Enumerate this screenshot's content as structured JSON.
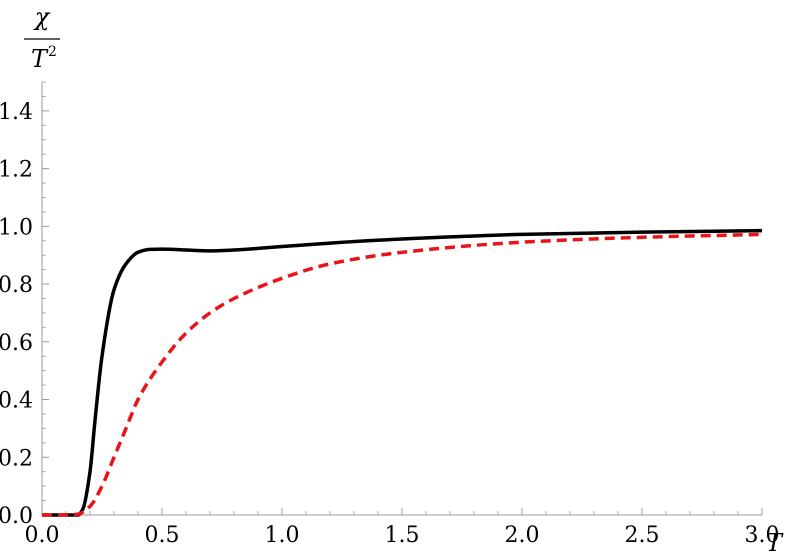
{
  "chart_data": {
    "type": "line",
    "xlabel": "T",
    "ylabel": {
      "numerator": "χ",
      "denominator_base": "T",
      "denominator_exponent": "2"
    },
    "xlim": [
      0,
      3.0
    ],
    "ylim": [
      0,
      1.5
    ],
    "x_ticks": [
      "0.0",
      "0.5",
      "1.0",
      "1.5",
      "2.0",
      "2.5",
      "3.0"
    ],
    "y_ticks": [
      "0.0",
      "0.2",
      "0.4",
      "0.6",
      "0.8",
      "1.0",
      "1.2",
      "1.4"
    ],
    "grid": false,
    "series": [
      {
        "style": "solid",
        "color": "#000000",
        "x": [
          0.0,
          0.1,
          0.15,
          0.17,
          0.2,
          0.22,
          0.25,
          0.3,
          0.35,
          0.4,
          0.45,
          0.5,
          0.6,
          0.7,
          0.8,
          1.0,
          1.2,
          1.5,
          2.0,
          2.5,
          3.0
        ],
        "y": [
          0.0,
          0.0,
          0.0,
          0.02,
          0.15,
          0.32,
          0.55,
          0.78,
          0.87,
          0.91,
          0.92,
          0.921,
          0.918,
          0.915,
          0.918,
          0.93,
          0.942,
          0.956,
          0.972,
          0.98,
          0.985
        ]
      },
      {
        "style": "dashed",
        "color": "#e8141a",
        "x": [
          0.0,
          0.1,
          0.15,
          0.2,
          0.25,
          0.3,
          0.35,
          0.4,
          0.5,
          0.6,
          0.7,
          0.8,
          1.0,
          1.2,
          1.5,
          2.0,
          2.5,
          3.0
        ],
        "y": [
          0.0,
          0.0,
          0.003,
          0.03,
          0.1,
          0.2,
          0.3,
          0.4,
          0.53,
          0.63,
          0.7,
          0.75,
          0.82,
          0.87,
          0.91,
          0.945,
          0.962,
          0.972
        ]
      }
    ]
  }
}
